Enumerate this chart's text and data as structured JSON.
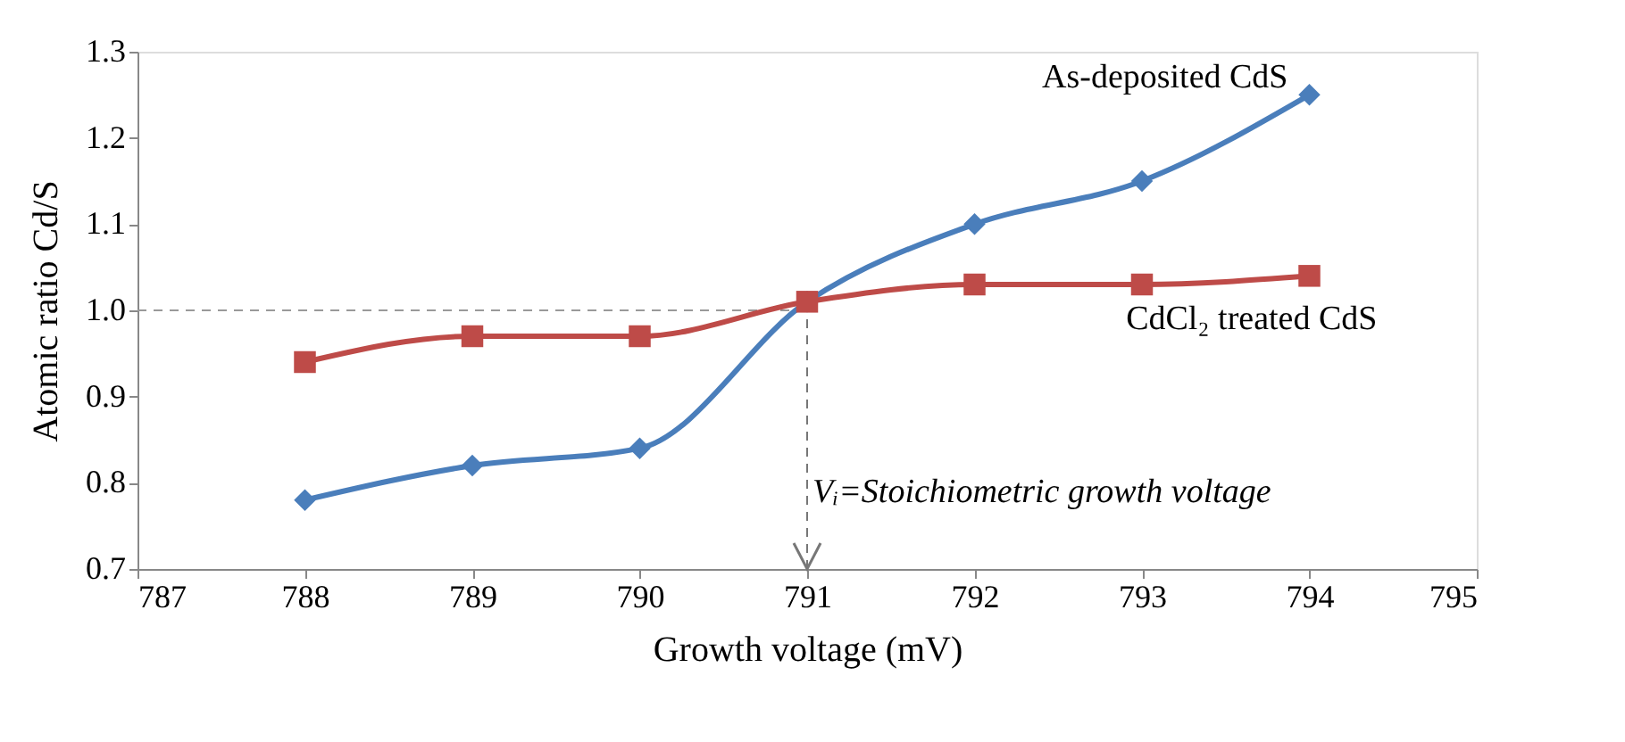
{
  "chart_data": {
    "type": "line",
    "xlabel": "Growth voltage (mV)",
    "ylabel": "Atomic ratio Cd/S",
    "x": [
      788,
      789,
      790,
      791,
      792,
      793,
      794
    ],
    "series": [
      {
        "name": "As-deposited CdS",
        "color": "#4a7ebb",
        "marker": "diamond",
        "values": [
          0.78,
          0.82,
          0.84,
          1.01,
          1.1,
          1.15,
          1.25
        ]
      },
      {
        "name": "CdCl₂ treated CdS",
        "color": "#be4b48",
        "marker": "square",
        "values": [
          0.94,
          0.97,
          0.97,
          1.01,
          1.03,
          1.03,
          1.04
        ]
      }
    ],
    "xlim": [
      787,
      795
    ],
    "xticks": [
      787,
      788,
      789,
      790,
      791,
      792,
      793,
      794,
      795
    ],
    "ylim": [
      0.7,
      1.3
    ],
    "yticks": [
      {
        "value": 0.7,
        "label": "0.7"
      },
      {
        "value": 0.8,
        "label": "0.8"
      },
      {
        "value": 0.9,
        "label": "0.9"
      },
      {
        "value": 1.0,
        "label": "1.0"
      },
      {
        "value": 1.1,
        "label": "1.1"
      },
      {
        "value": 1.2,
        "label": "1.2"
      },
      {
        "value": 1.3,
        "label": "1.3"
      }
    ],
    "ref_lines": [
      {
        "axis": "y",
        "value": 1.0,
        "color": "#999999",
        "line_style": "dashed"
      },
      {
        "axis": "x",
        "value": 791,
        "color": "#777777",
        "line_style": "dashed"
      }
    ],
    "annotations": [
      {
        "text": "Vᵢ=Stoichiometric growth voltage",
        "x": 791,
        "y": 0.79
      }
    ],
    "grid": false
  }
}
